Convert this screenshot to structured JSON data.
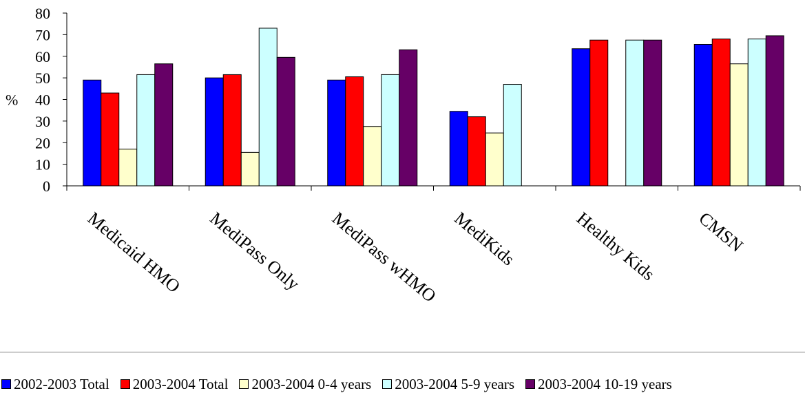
{
  "chart_data": {
    "type": "bar",
    "title": "",
    "xlabel": "",
    "ylabel": "%",
    "ylim": [
      0,
      80
    ],
    "yticks": [
      0,
      10,
      20,
      30,
      40,
      50,
      60,
      70,
      80
    ],
    "grid": false,
    "legend_position": "bottom",
    "categories": [
      "Medicaid HMO",
      "MediPass Only",
      "MediPass wHMO",
      "MediKids",
      "Healthy Kids",
      "CMSN"
    ],
    "series": [
      {
        "name": "2002-2003 Total",
        "color": "#0000ff",
        "values": [
          49,
          50,
          49,
          34.5,
          63.5,
          65.5
        ]
      },
      {
        "name": "2003-2004 Total",
        "color": "#ff0000",
        "values": [
          43,
          51.5,
          50.5,
          32,
          67.5,
          68
        ]
      },
      {
        "name": "2003-2004 0-4 years",
        "color": "#ffffcc",
        "values": [
          17,
          15.5,
          27.5,
          24.5,
          null,
          56.5
        ]
      },
      {
        "name": "2003-2004 5-9 years",
        "color": "#ccffff",
        "values": [
          51.5,
          73,
          51.5,
          47,
          67.5,
          68
        ]
      },
      {
        "name": "2003-2004 10-19 years",
        "color": "#660066",
        "values": [
          56.5,
          59.5,
          63,
          null,
          67.5,
          69.5
        ]
      }
    ]
  }
}
